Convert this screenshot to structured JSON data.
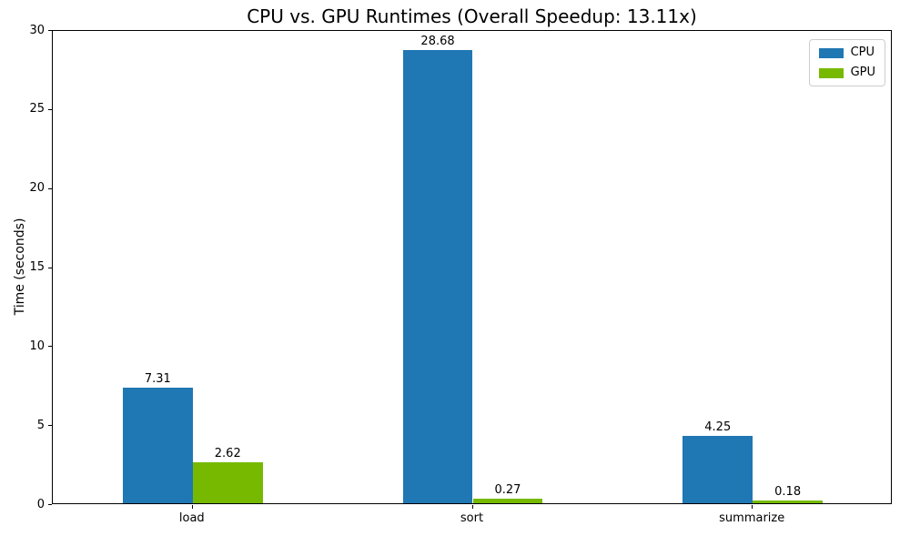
{
  "chart_data": {
    "type": "bar",
    "title": "CPU vs. GPU Runtimes (Overall Speedup: 13.11x)",
    "xlabel": "",
    "ylabel": "Time (seconds)",
    "categories": [
      "load",
      "sort",
      "summarize"
    ],
    "series": [
      {
        "name": "CPU",
        "color": "#1f77b4",
        "values": [
          7.31,
          28.68,
          4.25
        ],
        "labels": [
          "7.31",
          "28.68",
          "4.25"
        ]
      },
      {
        "name": "GPU",
        "color": "#76b900",
        "values": [
          2.62,
          0.27,
          0.18
        ],
        "labels": [
          "2.62",
          "0.27",
          "0.18"
        ]
      }
    ],
    "ylim": [
      0,
      30
    ],
    "yticks": [
      0,
      5,
      10,
      15,
      20,
      25,
      30
    ],
    "grid": false,
    "legend": {
      "position": "upper right",
      "entries": [
        "CPU",
        "GPU"
      ]
    }
  }
}
